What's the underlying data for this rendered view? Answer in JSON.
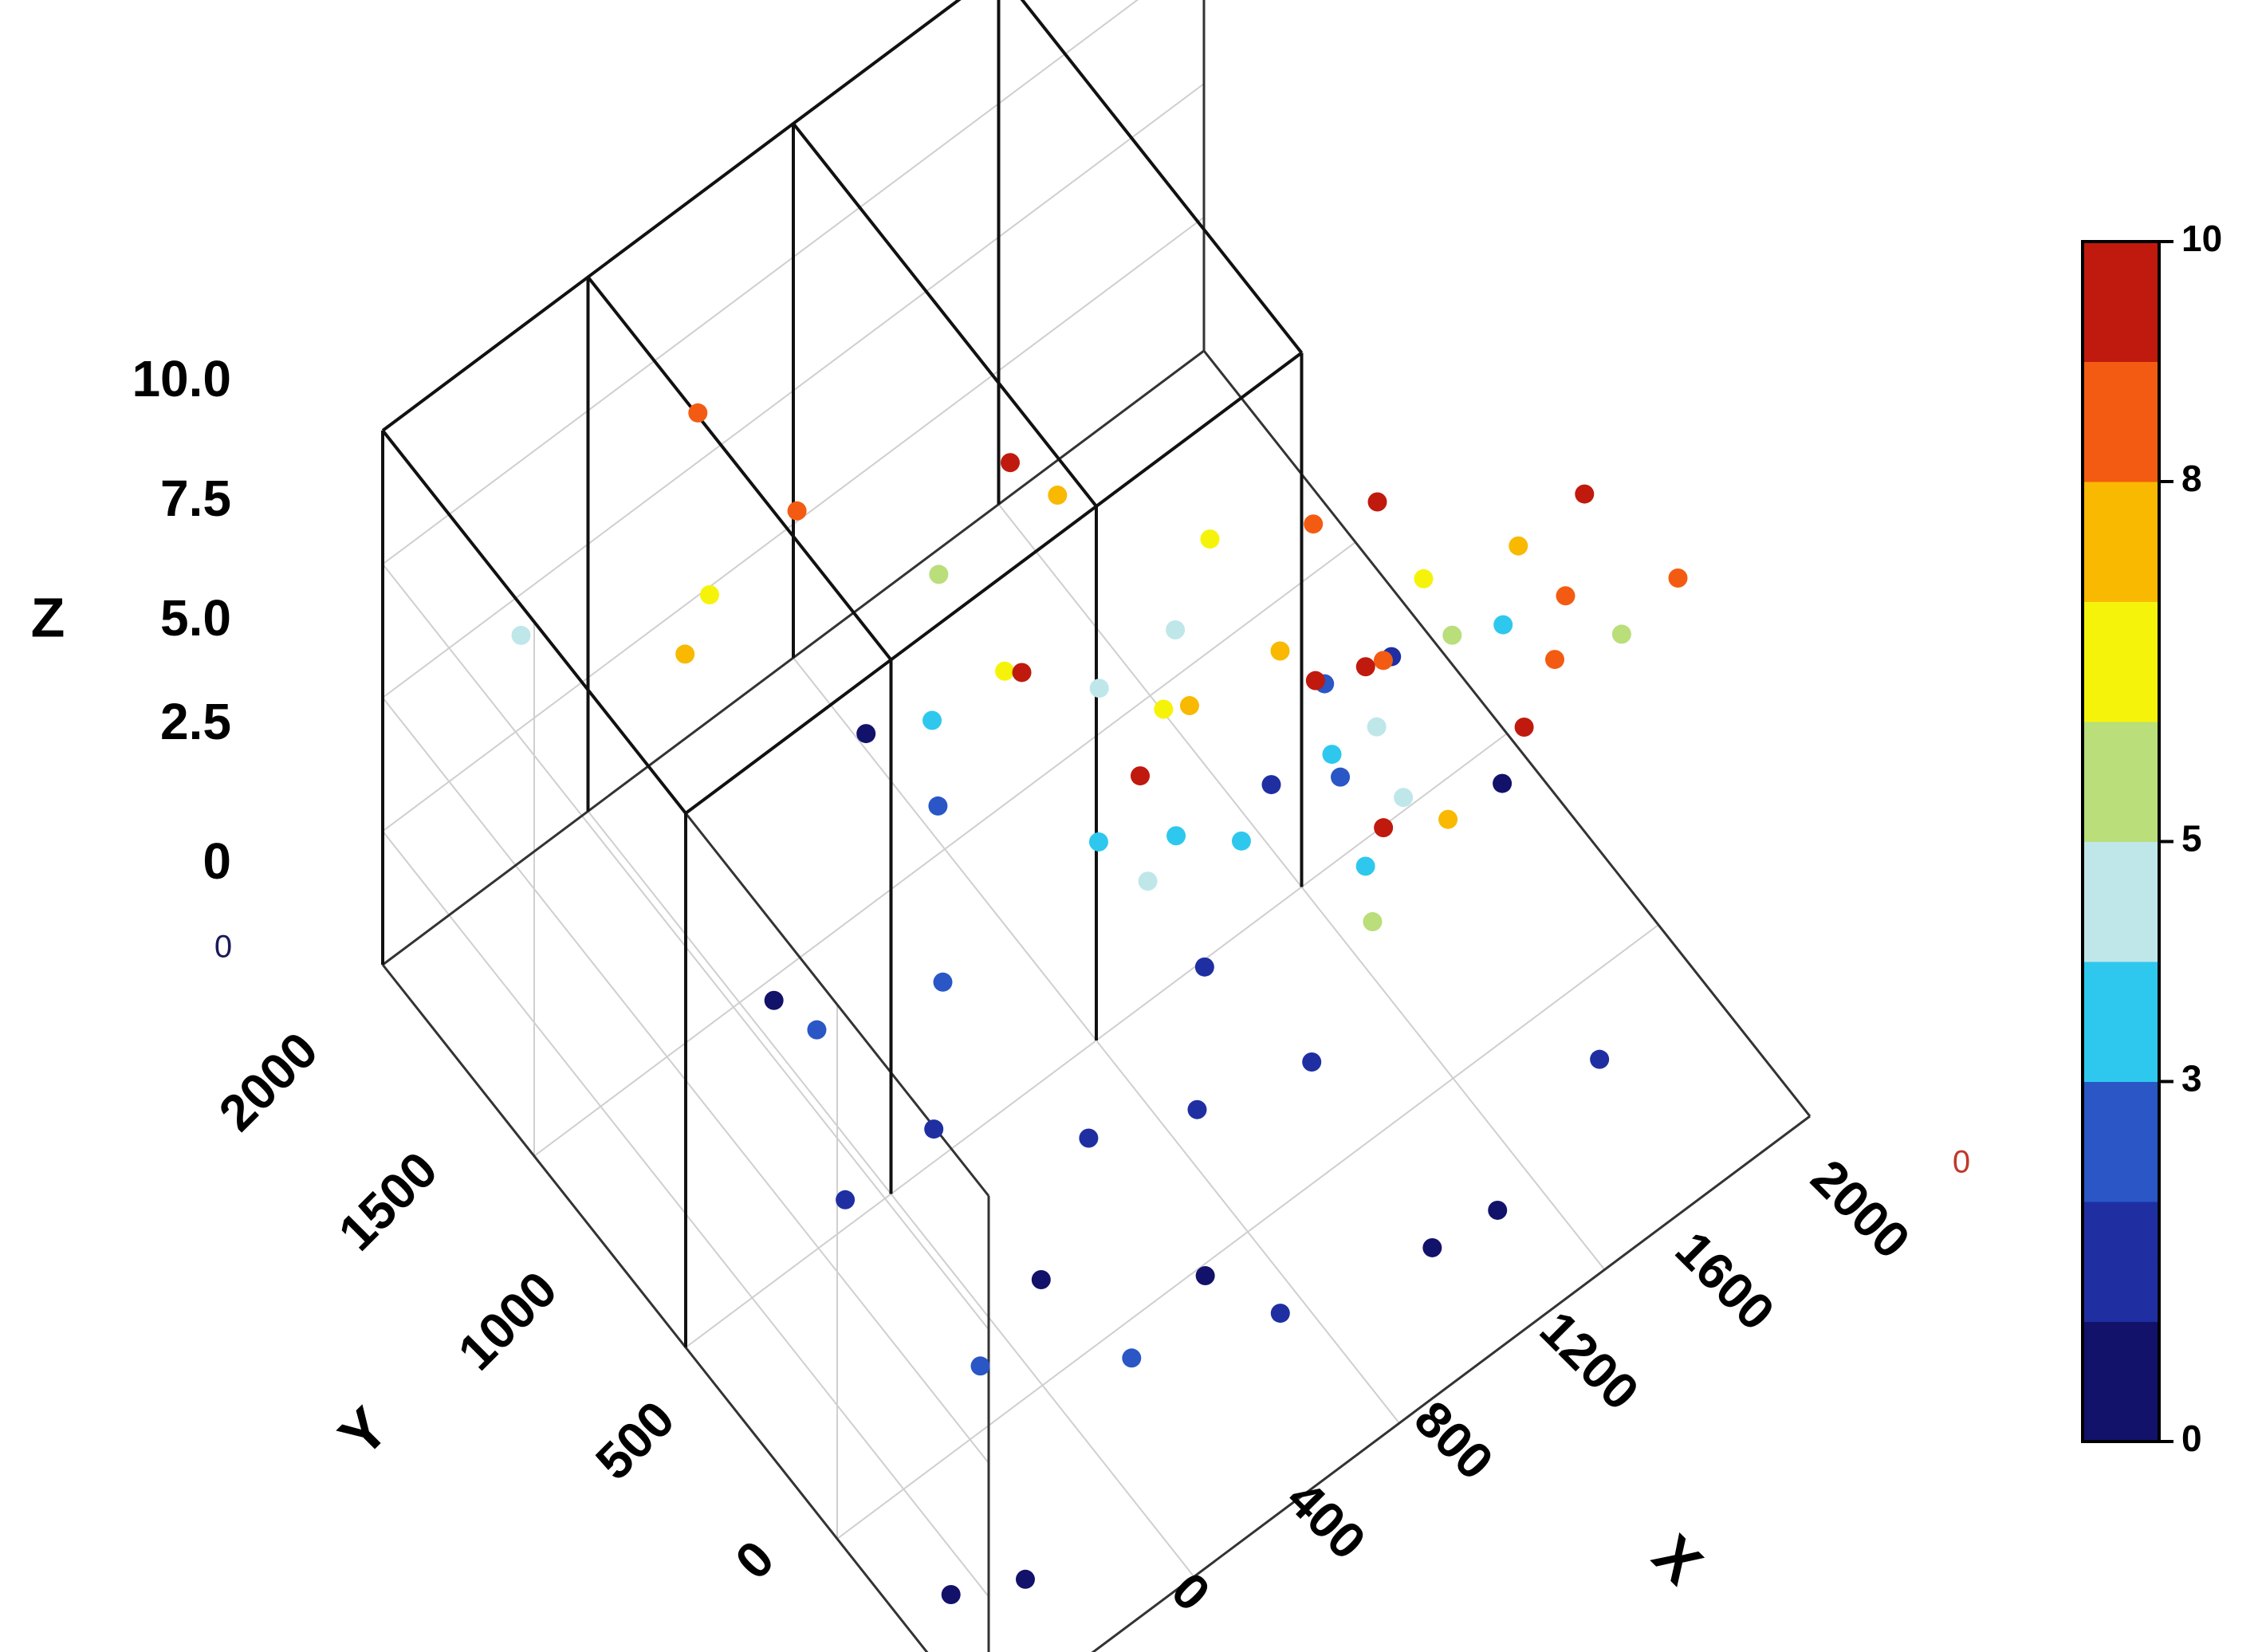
{
  "chart_data": {
    "type": "scatter",
    "title": "",
    "xlabel": "X",
    "ylabel": "Y",
    "zlabel": "Z",
    "xlim": [
      0,
      2000
    ],
    "ylim": [
      0,
      2000
    ],
    "zlim": [
      0,
      10
    ],
    "x_ticks": [
      "0",
      "400",
      "800",
      "1200",
      "1600",
      "2000"
    ],
    "y_ticks": [
      "0",
      "500",
      "1000",
      "1500",
      "2000"
    ],
    "z_ticks": [
      "0",
      "2.5",
      "5.0",
      "7.5",
      "10.0"
    ],
    "colorbar": {
      "min": 0,
      "max": 10,
      "ticks": [
        "0",
        "3",
        "5",
        "8",
        "10"
      ],
      "levels": 20,
      "colormap": [
        "#12126b",
        "#1f2fa2",
        "#2a56c6",
        "#2ec8ee",
        "#bfe7ea",
        "#b9de7a",
        "#f6f30a",
        "#f9b900",
        "#f45b12",
        "#c01a0e"
      ]
    },
    "corner_labels": {
      "left": "0",
      "right": "0"
    },
    "grid": true,
    "points": [
      [
        1050,
        120,
        10.0
      ],
      [
        1400,
        130,
        9.8
      ],
      [
        1150,
        480,
        9.6
      ],
      [
        760,
        530,
        9.7
      ],
      [
        1250,
        450,
        9.5
      ],
      [
        960,
        1230,
        9.4
      ],
      [
        730,
        880,
        9.3
      ],
      [
        1820,
        500,
        9.1
      ],
      [
        1500,
        750,
        9.0
      ],
      [
        1330,
        500,
        8.8
      ],
      [
        1700,
        400,
        8.6
      ],
      [
        1600,
        300,
        8.7
      ],
      [
        1900,
        300,
        8.5
      ],
      [
        640,
        1500,
        8.4
      ],
      [
        620,
        1800,
        8.2
      ],
      [
        1440,
        880,
        8.0
      ],
      [
        1090,
        1250,
        7.9
      ],
      [
        1740,
        610,
        7.8
      ],
      [
        1050,
        760,
        7.7
      ],
      [
        360,
        1490,
        7.4
      ],
      [
        1340,
        300,
        7.2
      ],
      [
        1300,
        800,
        7.0
      ],
      [
        1620,
        760,
        6.8
      ],
      [
        880,
        1140,
        6.6
      ],
      [
        1090,
        900,
        6.4
      ],
      [
        1380,
        1140,
        6.2
      ],
      [
        560,
        1680,
        6.0
      ],
      [
        1660,
        720,
        5.8
      ],
      [
        1940,
        540,
        5.5
      ],
      [
        1230,
        400,
        5.2
      ],
      [
        1000,
        1520,
        5.0
      ],
      [
        300,
        1950,
        4.8
      ],
      [
        1460,
        610,
        4.7
      ],
      [
        1140,
        1180,
        4.5
      ],
      [
        1340,
        1200,
        4.3
      ],
      [
        1000,
        830,
        4.2
      ],
      [
        1550,
        820,
        4.0
      ],
      [
        1880,
        850,
        3.8
      ],
      [
        1390,
        640,
        3.6
      ],
      [
        910,
        1420,
        3.5
      ],
      [
        1150,
        940,
        3.4
      ],
      [
        1250,
        860,
        3.3
      ],
      [
        1500,
        900,
        3.2
      ],
      [
        1050,
        1060,
        3.0
      ],
      [
        1600,
        1060,
        2.8
      ],
      [
        260,
        380,
        2.6
      ],
      [
        880,
        1360,
        2.5
      ],
      [
        430,
        1150,
        2.4
      ],
      [
        1550,
        940,
        2.2
      ],
      [
        700,
        1100,
        2.1
      ],
      [
        540,
        260,
        2.0
      ],
      [
        300,
        880,
        1.9
      ],
      [
        1800,
        1110,
        1.8
      ],
      [
        760,
        700,
        1.7
      ],
      [
        1200,
        560,
        1.6
      ],
      [
        1650,
        220,
        1.5
      ],
      [
        980,
        640,
        1.4
      ],
      [
        560,
        940,
        1.3
      ],
      [
        1500,
        1100,
        1.2
      ],
      [
        880,
        230,
        1.1
      ],
      [
        1190,
        900,
        1.0
      ],
      [
        1350,
        150,
        0.9
      ],
      [
        830,
        410,
        0.8
      ],
      [
        510,
        1400,
        0.7
      ],
      [
        200,
        150,
        0.6
      ],
      [
        1900,
        880,
        0.5
      ],
      [
        600,
        640,
        0.4
      ],
      [
        1000,
        1760,
        0.3
      ],
      [
        1250,
        230,
        0.2
      ],
      [
        100,
        260,
        0.1
      ]
    ]
  }
}
